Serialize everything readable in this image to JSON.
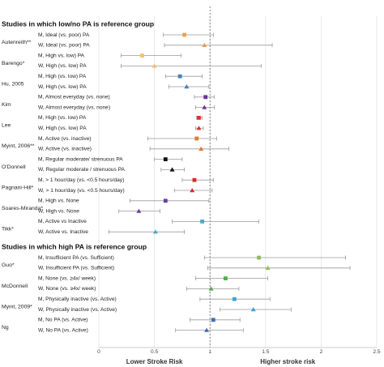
{
  "chart_data": {
    "type": "forest",
    "xlim": [
      0,
      2.5
    ],
    "xticks": [
      0,
      0.5,
      1,
      1.5,
      2,
      2.5
    ],
    "grid": true,
    "reference": 1,
    "axis_labels": [
      "Lower Stroke Risk",
      "Higher stroke risk"
    ],
    "sections": [
      {
        "title": "Studies in which low/no PA is reference group",
        "studies": [
          {
            "name": "Autenreith**",
            "color": "#e9a050",
            "rows": [
              {
                "label": "M, Ideal (vs. poor) PA",
                "marker": "square",
                "value": 0.77,
                "lo": 0.58,
                "hi": 1.03
              },
              {
                "label": "W, Ideal (vs. poor) PA",
                "marker": "triangle",
                "value": 0.95,
                "lo": 0.59,
                "hi": 1.56
              }
            ]
          },
          {
            "name": "Barengo*",
            "color": "#f3c067",
            "rows": [
              {
                "label": "M, High vs. low) PA",
                "marker": "square",
                "value": 0.39,
                "lo": 0.2,
                "hi": 0.74
              },
              {
                "label": "W, High (vs. low)  PA",
                "marker": "triangle",
                "value": 0.5,
                "lo": 0.2,
                "hi": 1.46
              }
            ]
          },
          {
            "name": "Hu, 2005",
            "color": "#4a7fc1",
            "rows": [
              {
                "label": "M, High (vs. low) PA",
                "marker": "square",
                "value": 0.73,
                "lo": 0.6,
                "hi": 0.93
              },
              {
                "label": "W, High (vs. low) PA",
                "marker": "triangle",
                "value": 0.79,
                "lo": 0.63,
                "hi": 0.99
              }
            ]
          },
          {
            "name": "Kim",
            "color": "#7030a0",
            "rows": [
              {
                "label": "M, Almost everyday (vs. none)",
                "marker": "square",
                "value": 0.96,
                "lo": 0.86,
                "hi": 1.04
              },
              {
                "label": "W, Almost everyday (vs. none)",
                "marker": "triangle",
                "value": 0.95,
                "lo": 0.87,
                "hi": 1.04
              }
            ]
          },
          {
            "name": "Lee",
            "color": "#d9302c",
            "rows": [
              {
                "label": "M, High (vs. low) PA",
                "marker": "square",
                "value": 0.9,
                "lo": 0.88,
                "hi": 0.93
              },
              {
                "label": "W, High (vs. low) PA",
                "marker": "triangle",
                "value": 0.9,
                "lo": 0.87,
                "hi": 0.94
              }
            ]
          },
          {
            "name": "Myint, 2006**",
            "color": "#e07b39",
            "rows": [
              {
                "label": "M, Active (vs. inactive)",
                "marker": "square",
                "value": 0.88,
                "lo": 0.44,
                "hi": 1.06
              },
              {
                "label": "W, Active (vs. inactive)",
                "marker": "triangle",
                "value": 0.92,
                "lo": 0.46,
                "hi": 1.17
              }
            ]
          },
          {
            "name": "O'Donnell",
            "color": "#111111",
            "rows": [
              {
                "label": "M, Regular moderate/ strenuous PA",
                "marker": "square",
                "value": 0.6,
                "lo": 0.5,
                "hi": 0.75
              },
              {
                "label": "W, Regular moderate / strenuous PA",
                "marker": "triangle",
                "value": 0.66,
                "lo": 0.56,
                "hi": 0.77
              }
            ]
          },
          {
            "name": "Pagnani-Hill*",
            "color": "#e0262d",
            "rows": [
              {
                "label": "M, > 1 hour/day (vs. <0.5 hours/day)",
                "marker": "square",
                "value": 0.86,
                "lo": 0.75,
                "hi": 1.03
              },
              {
                "label": "W, > 1 hour/day (vs. <0.5 hours/day)",
                "marker": "triangle",
                "value": 0.84,
                "lo": 0.68,
                "hi": 1.02
              }
            ]
          },
          {
            "name": "Soares-Miranda*",
            "color": "#6b3fa0",
            "rows": [
              {
                "label": "M, High vs. None",
                "marker": "square",
                "value": 0.6,
                "lo": 0.28,
                "hi": 0.99
              },
              {
                "label": "W, High vs. None",
                "marker": "triangle",
                "value": 0.36,
                "lo": 0.18,
                "hi": 0.55
              }
            ]
          },
          {
            "name": "Tikk*",
            "color": "#4bacc6",
            "rows": [
              {
                "label": "M, Active vs Inactive",
                "marker": "square",
                "value": 0.93,
                "lo": 0.66,
                "hi": 1.44
              },
              {
                "label": "W, Active vs. Inactive",
                "marker": "triangle",
                "value": 0.51,
                "lo": 0.09,
                "hi": 0.77
              }
            ]
          }
        ]
      },
      {
        "title": "Studies in which high PA is reference group",
        "studies": [
          {
            "name": "Guo*",
            "color": "#8fbc5a",
            "rows": [
              {
                "label": "M, Insufficient PA (vs. Sufficient)",
                "marker": "square",
                "value": 1.44,
                "lo": 0.95,
                "hi": 2.22
              },
              {
                "label": "W, Insufficient PA (vs. Sufficient)",
                "marker": "triangle",
                "value": 1.52,
                "lo": 0.98,
                "hi": 2.26
              }
            ]
          },
          {
            "name": "McDonnell",
            "color": "#4caf50",
            "rows": [
              {
                "label": "M, None (vs. ≥4x/ week)",
                "marker": "square",
                "value": 1.14,
                "lo": 0.87,
                "hi": 1.52
              },
              {
                "label": "W, None (vs. ≥4x/ week)",
                "marker": "triangle",
                "value": 1.01,
                "lo": 0.79,
                "hi": 1.26
              }
            ]
          },
          {
            "name": "Myint, 2009*",
            "color": "#3ba6d8",
            "rows": [
              {
                "label": "M, Physically inactive (vs. Active)",
                "marker": "square",
                "value": 1.22,
                "lo": 0.91,
                "hi": 1.54
              },
              {
                "label": "W, Physically inactive (vs. Active)",
                "marker": "triangle",
                "value": 1.39,
                "lo": 1.09,
                "hi": 1.73
              }
            ]
          },
          {
            "name": "Ng",
            "color": "#3f6fb5",
            "rows": [
              {
                "label": "M, No PA (vs. Active)",
                "marker": "square",
                "value": 1.03,
                "lo": 0.82,
                "hi": 1.27
              },
              {
                "label": "W, No PA (vs. Active)",
                "marker": "triangle",
                "value": 0.97,
                "lo": 0.69,
                "hi": 1.3
              }
            ]
          }
        ]
      }
    ]
  }
}
